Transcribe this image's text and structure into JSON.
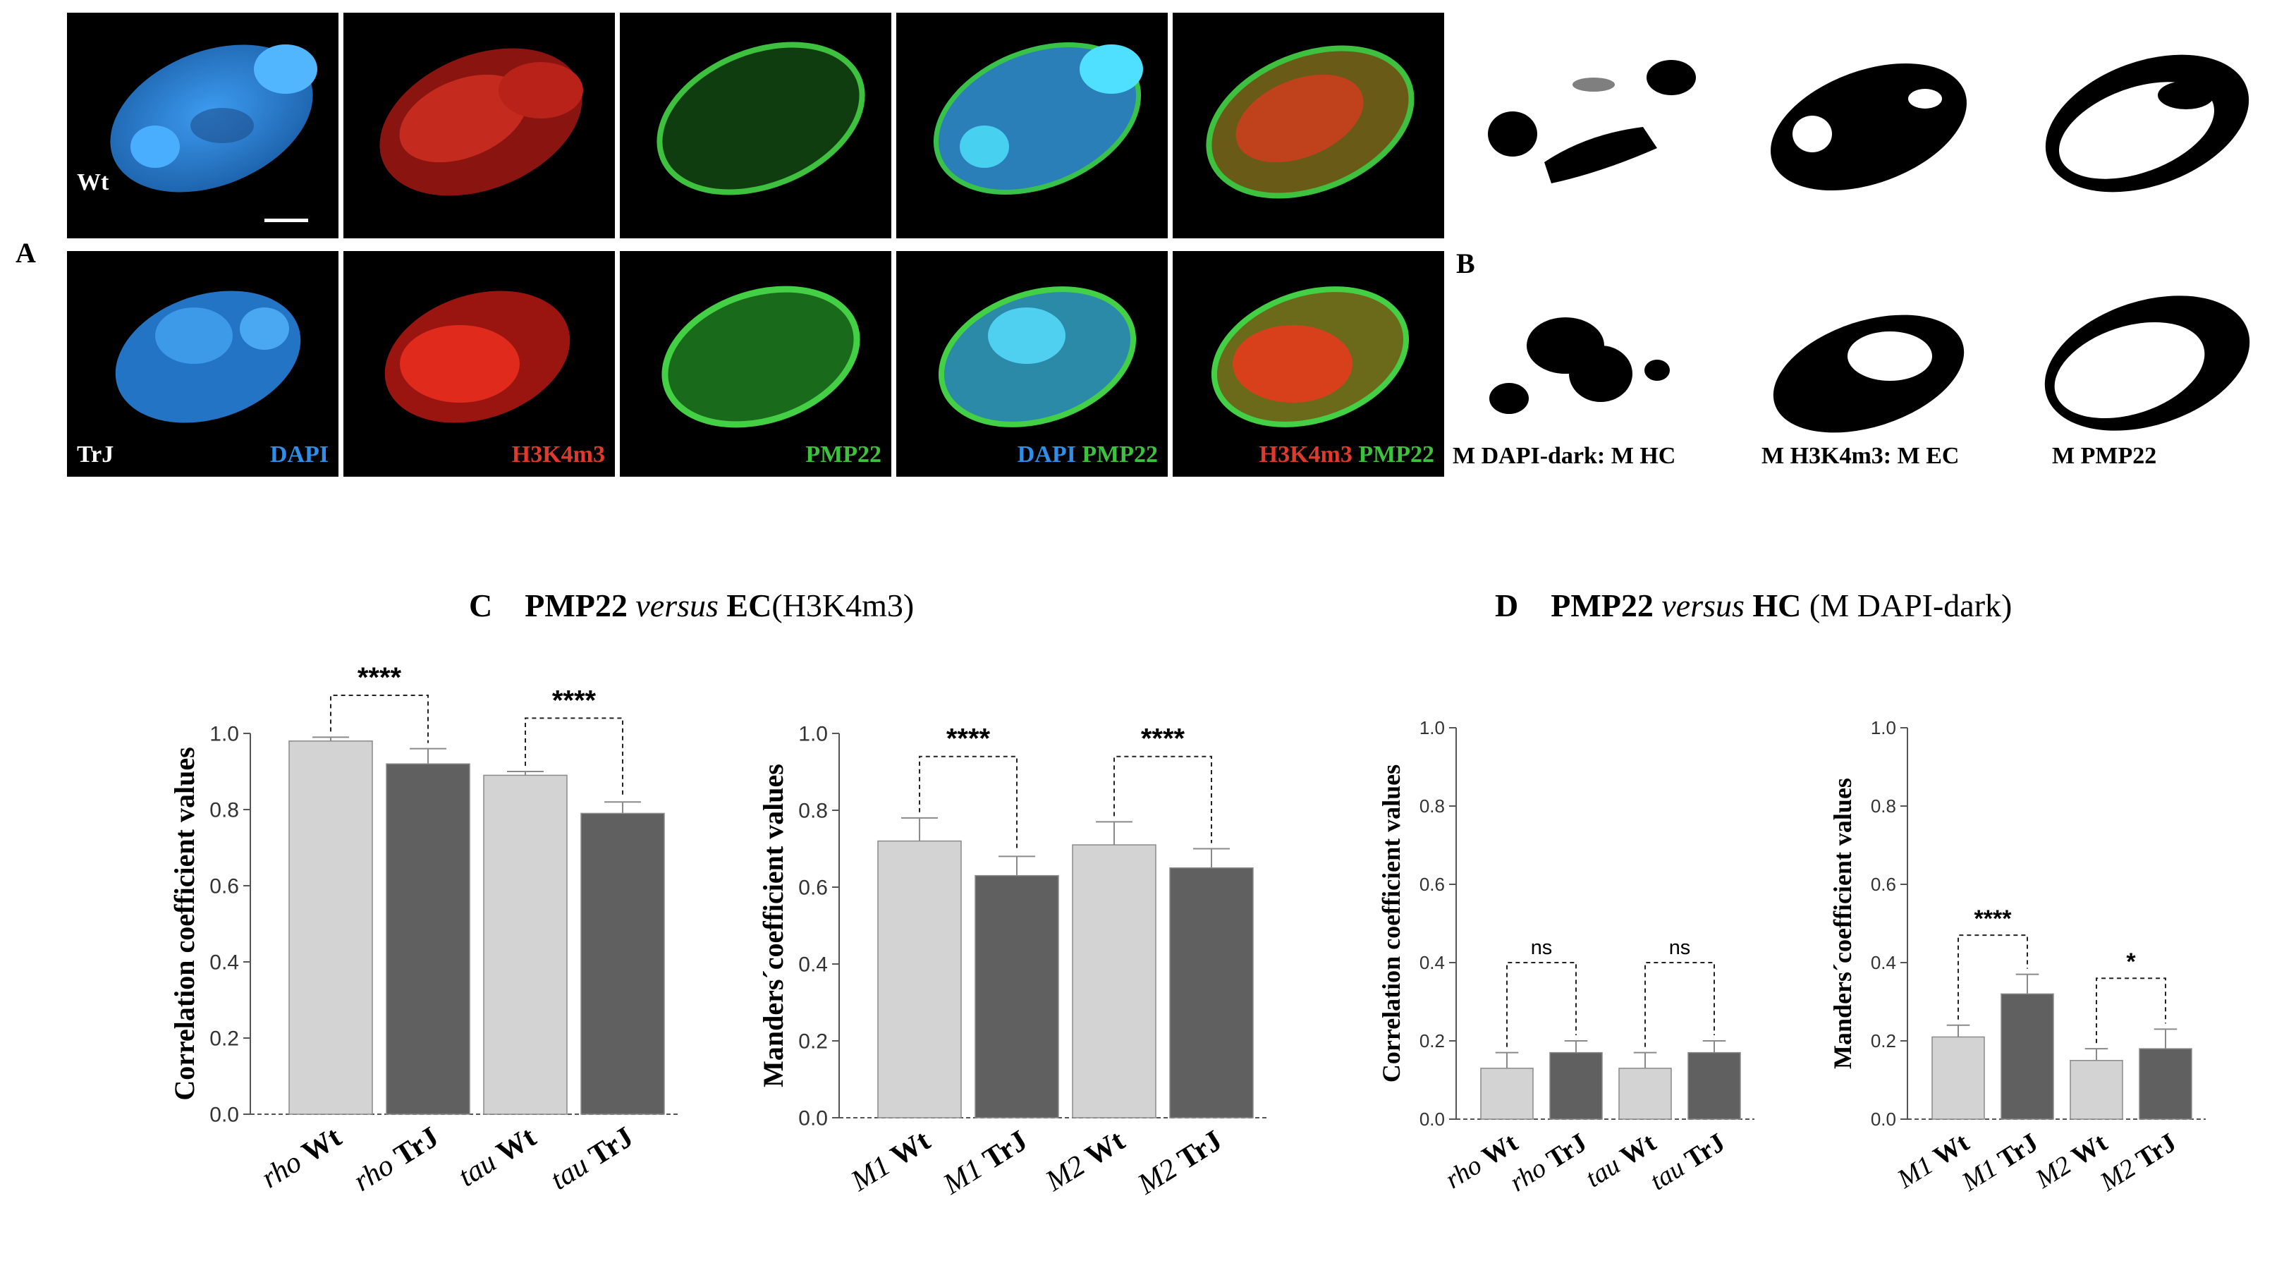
{
  "panel_a": {
    "letter": "A",
    "row1_label": "Wt",
    "row2_label": "TrJ",
    "labels": {
      "dapi": "DAPI",
      "h3k4m3": "H3K4m3",
      "pmp22": "PMP22",
      "merge1_a": "DAPI",
      "merge1_b": "PMP22",
      "merge2_a": "H3K4m3",
      "merge2_b": "PMP22"
    },
    "colors": {
      "dapi": "#2f8fe8",
      "h3k4m3": "#e03a2a",
      "pmp22": "#3cc23c"
    }
  },
  "panel_b": {
    "letter": "B",
    "labels": [
      "M DAPI-dark: M HC",
      "M H3K4m3: M EC",
      "M PMP22"
    ]
  },
  "panel_c": {
    "letter": "C",
    "title_bold1": "PMP22",
    "title_italic": "versus",
    "title_bold2": "EC",
    "title_rest": "(H3K4m3)"
  },
  "panel_d": {
    "letter": "D",
    "title_bold1": "PMP22",
    "title_italic": "versus",
    "title_bold2": "HC",
    "title_rest": "(M DAPI-dark)"
  },
  "chart_data": [
    {
      "id": "c1",
      "type": "bar",
      "ylabel": "Correlation coefficient values",
      "ylim": [
        0,
        1.0
      ],
      "yticks": [
        "0.0",
        "0.2",
        "0.4",
        "0.6",
        "0.8",
        "1.0"
      ],
      "categories": [
        {
          "it": "rho",
          "b": "Wt"
        },
        {
          "it": "rho",
          "b": "TrJ"
        },
        {
          "it": "tau",
          "b": "Wt"
        },
        {
          "it": "tau",
          "b": "TrJ"
        }
      ],
      "values": [
        0.98,
        0.92,
        0.89,
        0.79
      ],
      "errors": [
        0.01,
        0.04,
        0.01,
        0.03
      ],
      "bar_colors": [
        "#d3d3d3",
        "#606060",
        "#d3d3d3",
        "#606060"
      ],
      "comparisons": [
        {
          "from": 0,
          "to": 1,
          "label": "****",
          "level": 1.1
        },
        {
          "from": 2,
          "to": 3,
          "label": "****",
          "level": 1.04
        }
      ]
    },
    {
      "id": "c2",
      "type": "bar",
      "ylabel": "Manders´coefficient values",
      "ylim": [
        0,
        1.0
      ],
      "yticks": [
        "0.0",
        "0.2",
        "0.4",
        "0.6",
        "0.8",
        "1.0"
      ],
      "categories": [
        {
          "it": "M1",
          "b": "Wt"
        },
        {
          "it": "M1",
          "b": "TrJ"
        },
        {
          "it": "M2",
          "b": "Wt"
        },
        {
          "it": "M2",
          "b": "TrJ"
        }
      ],
      "values": [
        0.72,
        0.63,
        0.71,
        0.65
      ],
      "errors": [
        0.06,
        0.05,
        0.06,
        0.05
      ],
      "bar_colors": [
        "#d3d3d3",
        "#606060",
        "#d3d3d3",
        "#606060"
      ],
      "comparisons": [
        {
          "from": 0,
          "to": 1,
          "label": "****",
          "level": 0.94
        },
        {
          "from": 2,
          "to": 3,
          "label": "****",
          "level": 0.94
        }
      ]
    },
    {
      "id": "d1",
      "type": "bar",
      "ylabel": "Correlation coefficient values",
      "ylim": [
        0,
        1.0
      ],
      "yticks": [
        "0.0",
        "0.2",
        "0.4",
        "0.6",
        "0.8",
        "1.0"
      ],
      "categories": [
        {
          "it": "rho",
          "b": "Wt"
        },
        {
          "it": "rho",
          "b": "TrJ"
        },
        {
          "it": "tau",
          "b": "Wt"
        },
        {
          "it": "tau",
          "b": "TrJ"
        }
      ],
      "values": [
        0.13,
        0.17,
        0.13,
        0.17
      ],
      "errors": [
        0.04,
        0.03,
        0.04,
        0.03
      ],
      "bar_colors": [
        "#d3d3d3",
        "#606060",
        "#d3d3d3",
        "#606060"
      ],
      "comparisons": [
        {
          "from": 0,
          "to": 1,
          "label": "ns",
          "level": 0.4
        },
        {
          "from": 2,
          "to": 3,
          "label": "ns",
          "level": 0.4
        }
      ]
    },
    {
      "id": "d2",
      "type": "bar",
      "ylabel": "Manders´coefficient values",
      "ylim": [
        0,
        1.0
      ],
      "yticks": [
        "0.0",
        "0.2",
        "0.4",
        "0.6",
        "0.8",
        "1.0"
      ],
      "categories": [
        {
          "it": "M1",
          "b": "Wt"
        },
        {
          "it": "M1",
          "b": "TrJ"
        },
        {
          "it": "M2",
          "b": "Wt"
        },
        {
          "it": "M2",
          "b": "TrJ"
        }
      ],
      "values": [
        0.21,
        0.32,
        0.15,
        0.18
      ],
      "errors": [
        0.03,
        0.05,
        0.03,
        0.05
      ],
      "bar_colors": [
        "#d3d3d3",
        "#606060",
        "#d3d3d3",
        "#606060"
      ],
      "comparisons": [
        {
          "from": 0,
          "to": 1,
          "label": "****",
          "level": 0.47
        },
        {
          "from": 2,
          "to": 3,
          "label": "*",
          "level": 0.36
        }
      ]
    }
  ]
}
